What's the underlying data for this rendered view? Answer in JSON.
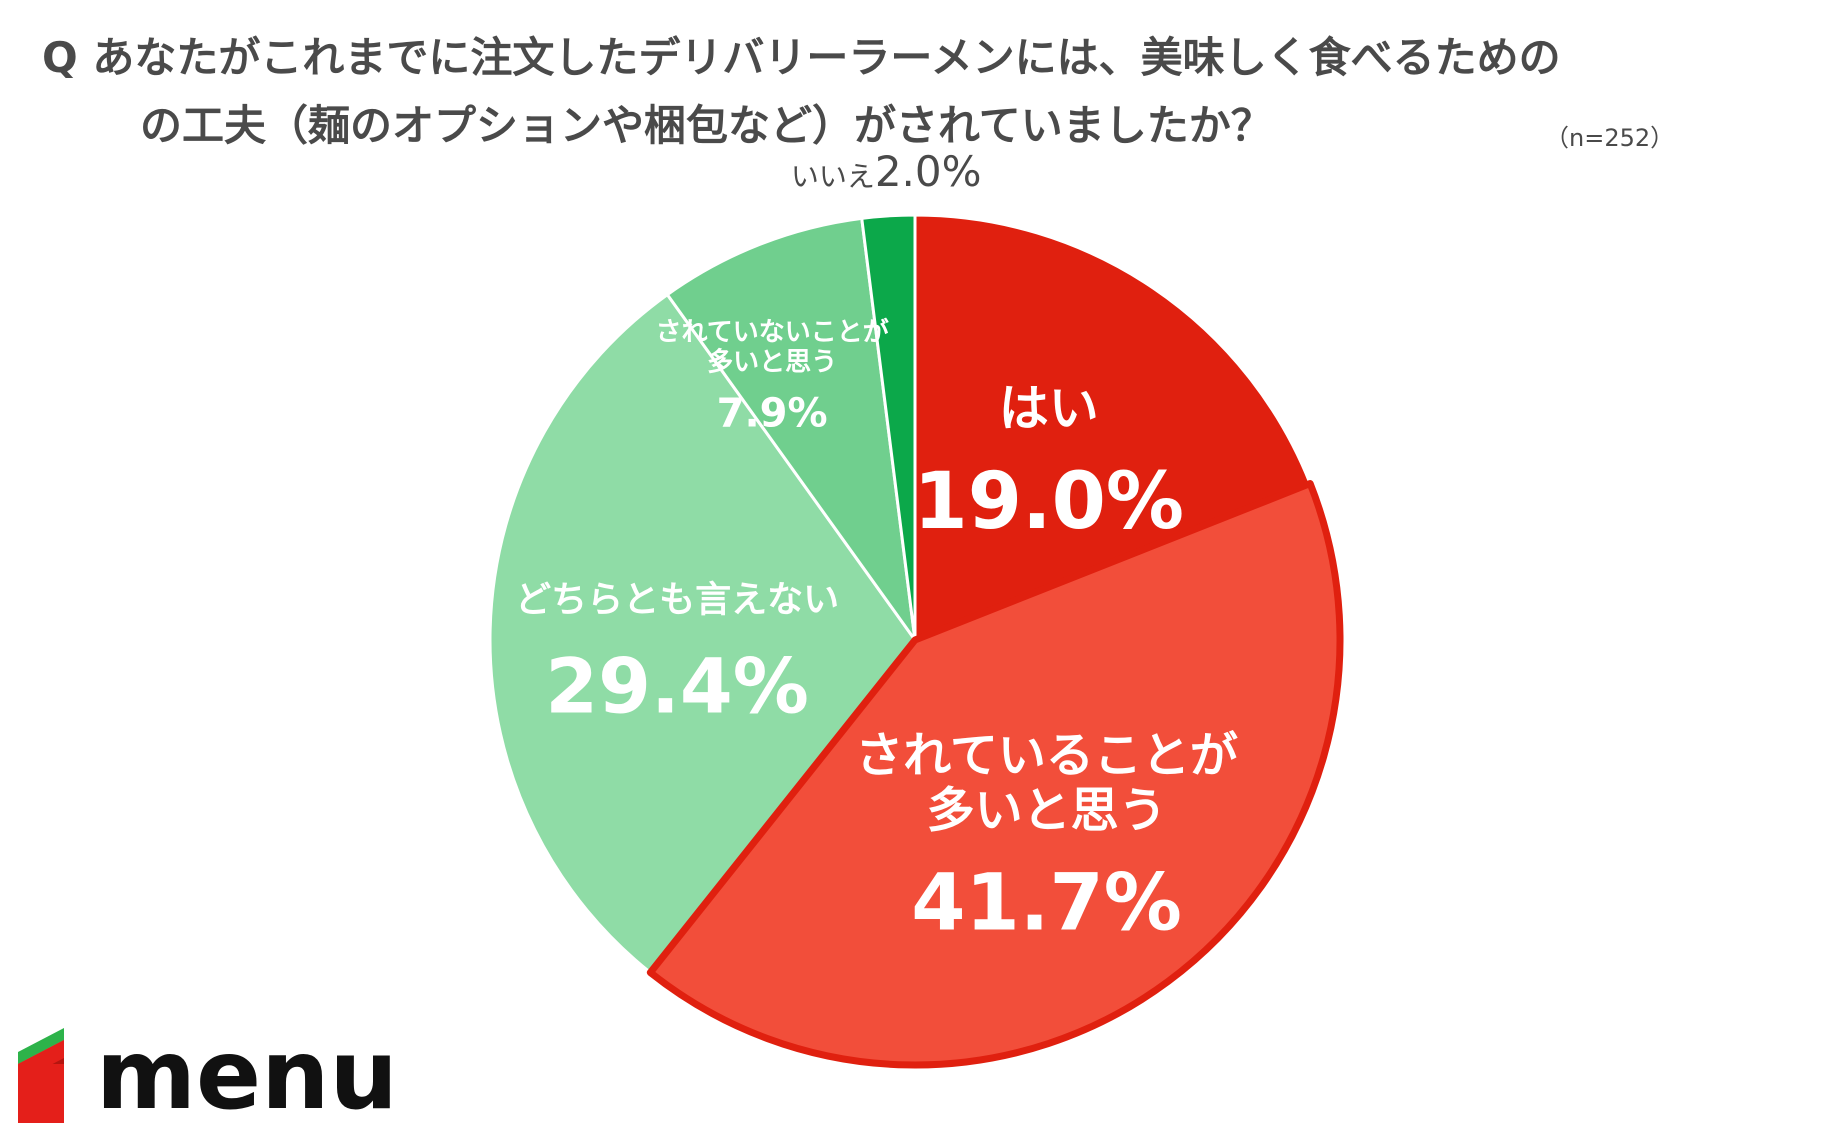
{
  "title_line1": "Q あなたがこれまでに注文したデリバリーラーメンには、美味しく食べるための",
  "title_line2": "の工夫（麺のオプションや梱包など）がされていましたか？",
  "sample_note": "（n=252）",
  "logo": {
    "text": "menu",
    "colors": {
      "top": "#2db34a",
      "front": "#e41f1a",
      "side": "#b5150f"
    }
  },
  "chart_data": {
    "type": "pie",
    "start_angle_deg": 0,
    "direction": "clockwise",
    "slices": [
      {
        "label_lines": [
          "はい"
        ],
        "value": 19.0,
        "value_label": "19.0%",
        "color": "#e0200f",
        "label_position": "inside"
      },
      {
        "label_lines": [
          "されていることが",
          "多いと思う"
        ],
        "value": 41.7,
        "value_label": "41.7%",
        "color": "#f24e3a",
        "outline": "#e0200f",
        "label_position": "inside"
      },
      {
        "label_lines": [
          "どちらとも言えない"
        ],
        "value": 29.4,
        "value_label": "29.4%",
        "color": "#8fdca6",
        "label_position": "inside"
      },
      {
        "label_lines": [
          "されていないことが",
          "多いと思う"
        ],
        "value": 7.9,
        "value_label": "7.9%",
        "color": "#70cf8e",
        "label_position": "inside"
      },
      {
        "label_lines": [
          "いいえ"
        ],
        "value": 2.0,
        "value_label": "2.0%",
        "color": "#0ca84a",
        "label_position": "outside-top"
      }
    ]
  }
}
